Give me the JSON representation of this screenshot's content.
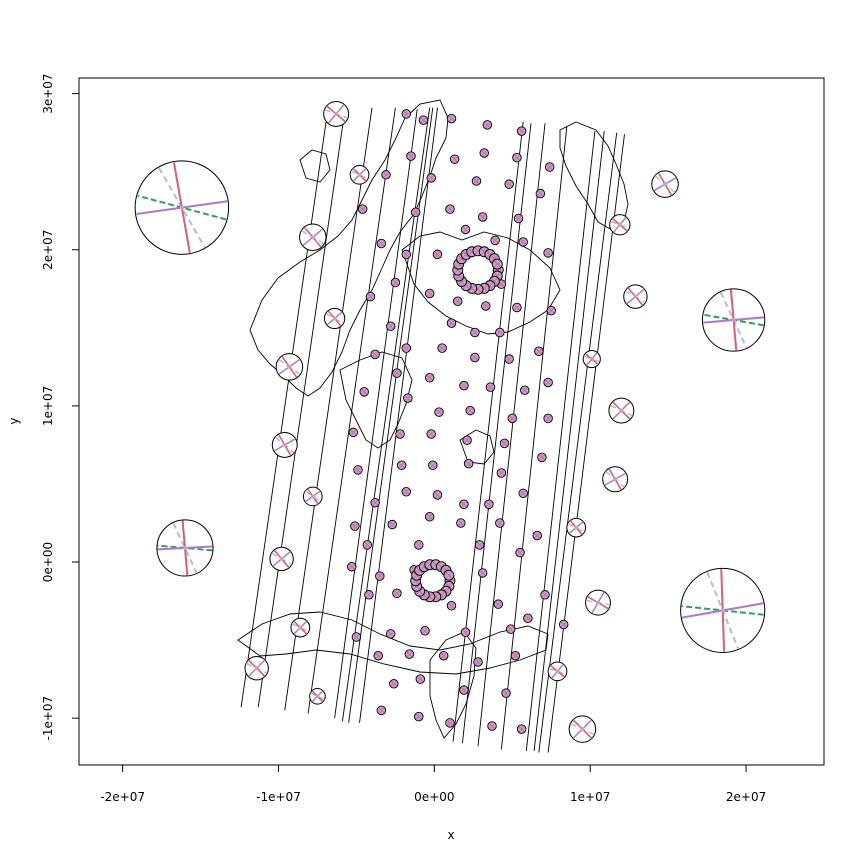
{
  "chart_data": {
    "type": "scatter",
    "xlabel": "x",
    "ylabel": "y",
    "xlim": [
      -22800000,
      25000000
    ],
    "ylim": [
      -13000000,
      31000000
    ],
    "x_ticks": [
      {
        "value": -20000000,
        "label": "-2e+07"
      },
      {
        "value": -10000000,
        "label": "-1e+07"
      },
      {
        "value": 0,
        "label": "0e+00"
      },
      {
        "value": 10000000,
        "label": "1e+07"
      },
      {
        "value": 20000000,
        "label": "2e+07"
      }
    ],
    "y_ticks": [
      {
        "value": -10000000,
        "label": "-1e+07"
      },
      {
        "value": 0,
        "label": "0e+00"
      },
      {
        "value": 10000000,
        "label": "1e+07"
      },
      {
        "value": 20000000,
        "label": "2e+07"
      },
      {
        "value": 30000000,
        "label": "3e+07"
      }
    ],
    "grid": false,
    "legend": "none",
    "colors": {
      "indicatrix_fill": "#c9a0c3",
      "line_red": "#d0637a",
      "line_purple": "#a77cc9",
      "line_green": "#3c9a60",
      "line_gray": "#bbbbbb",
      "outline": "#000000"
    },
    "graticule": [
      [
        [
          -12400000,
          -9300000
        ],
        [
          -6800000,
          29200000
        ]
      ],
      [
        [
          -11300000,
          -9300000
        ],
        [
          -5700000,
          29200000
        ]
      ],
      [
        [
          -9600000,
          -9500000
        ],
        [
          -4000000,
          29100000
        ]
      ],
      [
        [
          -8100000,
          -9700000
        ],
        [
          -2500000,
          29100000
        ]
      ],
      [
        [
          -6400000,
          -10000000
        ],
        [
          -1100000,
          29000000
        ]
      ],
      [
        [
          -5900000,
          -10200000
        ],
        [
          -300000,
          29100000
        ]
      ],
      [
        [
          -5500000,
          -10300000
        ],
        [
          -100000,
          29100000
        ]
      ],
      [
        [
          -4800000,
          -10300000
        ],
        [
          200000,
          29100000
        ]
      ],
      [
        [
          1200000,
          -11500000
        ],
        [
          5700000,
          28200000
        ]
      ],
      [
        [
          1800000,
          -11600000
        ],
        [
          6200000,
          28100000
        ]
      ],
      [
        [
          2800000,
          -11800000
        ],
        [
          7100000,
          28100000
        ]
      ],
      [
        [
          4300000,
          -12000000
        ],
        [
          8500000,
          27900000
        ]
      ],
      [
        [
          5900000,
          -12100000
        ],
        [
          10300000,
          27600000
        ]
      ],
      [
        [
          6400000,
          -12100000
        ],
        [
          10900000,
          27600000
        ]
      ],
      [
        [
          6700000,
          -12200000
        ],
        [
          11700000,
          27500000
        ]
      ],
      [
        [
          7300000,
          -12200000
        ],
        [
          12200000,
          27400000
        ]
      ]
    ],
    "indicatrices": [
      {
        "x": -16200000,
        "y": 22700000,
        "r": 3000000,
        "a": -80,
        "b": 8,
        "c": 165
      },
      {
        "x": -16000000,
        "y": 900000,
        "r": 1800000,
        "a": -85,
        "b": 3,
        "c": 175
      },
      {
        "x": 19200000,
        "y": 15500000,
        "r": 2000000,
        "a": -85,
        "b": 5,
        "c": 170
      },
      {
        "x": 18500000,
        "y": -3100000,
        "r": 2700000,
        "a": -88,
        "b": 10,
        "c": 174
      },
      {
        "x": 14800000,
        "y": 24200000,
        "r": 850000,
        "a": -60,
        "b": 30,
        "c": 120
      },
      {
        "x": 12900000,
        "y": 17000000,
        "r": 750000,
        "a": -50,
        "b": 40,
        "c": 130
      },
      {
        "x": 11900000,
        "y": 21600000,
        "r": 650000,
        "a": -40,
        "b": 50,
        "c": 140
      },
      {
        "x": 12000000,
        "y": 9700000,
        "r": 800000,
        "a": -45,
        "b": 45,
        "c": 135
      },
      {
        "x": 11600000,
        "y": 5300000,
        "r": 800000,
        "a": -60,
        "b": 30,
        "c": 120
      },
      {
        "x": 10500000,
        "y": -2600000,
        "r": 800000,
        "a": -30,
        "b": 60,
        "c": 150
      },
      {
        "x": 9500000,
        "y": -10700000,
        "r": 850000,
        "a": -45,
        "b": 45,
        "c": 135
      },
      {
        "x": 7900000,
        "y": -7000000,
        "r": 600000,
        "a": -40,
        "b": 50,
        "c": 140
      },
      {
        "x": -6300000,
        "y": 28700000,
        "r": 800000,
        "a": -40,
        "b": 50,
        "c": 140
      },
      {
        "x": -7800000,
        "y": 20800000,
        "r": 850000,
        "a": -50,
        "b": 40,
        "c": 130
      },
      {
        "x": -9300000,
        "y": 12500000,
        "r": 850000,
        "a": -55,
        "b": 35,
        "c": 125
      },
      {
        "x": -9600000,
        "y": 7500000,
        "r": 800000,
        "a": -60,
        "b": 30,
        "c": 120
      },
      {
        "x": -9800000,
        "y": 200000,
        "r": 750000,
        "a": -50,
        "b": 40,
        "c": 130
      },
      {
        "x": -11400000,
        "y": -6800000,
        "r": 750000,
        "a": -45,
        "b": 45,
        "c": 135
      },
      {
        "x": -4800000,
        "y": 24800000,
        "r": 600000,
        "a": -45,
        "b": 45,
        "c": 135
      },
      {
        "x": -6400000,
        "y": 15600000,
        "r": 650000,
        "a": -50,
        "b": 40,
        "c": 130
      },
      {
        "x": -7800000,
        "y": 4200000,
        "r": 600000,
        "a": -55,
        "b": 35,
        "c": 125
      },
      {
        "x": -8600000,
        "y": -4200000,
        "r": 600000,
        "a": -45,
        "b": 45,
        "c": 135
      },
      {
        "x": -7500000,
        "y": -8600000,
        "r": 500000,
        "a": -45,
        "b": 45,
        "c": 135
      },
      {
        "x": 10100000,
        "y": 13000000,
        "r": 550000,
        "a": -40,
        "b": 50,
        "c": 140
      },
      {
        "x": 9100000,
        "y": 2200000,
        "r": 600000,
        "a": -50,
        "b": 40,
        "c": 130
      }
    ],
    "small_points": [
      [
        -1800000,
        28700000
      ],
      [
        -700000,
        28300000
      ],
      [
        1100000,
        28400000
      ],
      [
        3400000,
        28000000
      ],
      [
        5600000,
        27600000
      ],
      [
        -1500000,
        26000000
      ],
      [
        1300000,
        25800000
      ],
      [
        3200000,
        26200000
      ],
      [
        5300000,
        25900000
      ],
      [
        7400000,
        25300000
      ],
      [
        -3100000,
        24800000
      ],
      [
        -200000,
        24600000
      ],
      [
        2700000,
        24400000
      ],
      [
        4800000,
        24200000
      ],
      [
        6800000,
        23600000
      ],
      [
        -4600000,
        22600000
      ],
      [
        -1200000,
        22400000
      ],
      [
        1000000,
        22600000
      ],
      [
        3100000,
        22100000
      ],
      [
        5400000,
        22000000
      ],
      [
        -3400000,
        20400000
      ],
      [
        -1800000,
        19700000
      ],
      [
        200000,
        19700000
      ],
      [
        2000000,
        21300000
      ],
      [
        3900000,
        20600000
      ],
      [
        5700000,
        20500000
      ],
      [
        7300000,
        19800000
      ],
      [
        -2500000,
        17900000
      ],
      [
        1800000,
        17900000
      ],
      [
        4300000,
        17800000
      ],
      [
        -4100000,
        17000000
      ],
      [
        -300000,
        17200000
      ],
      [
        1500000,
        16700000
      ],
      [
        3300000,
        16400000
      ],
      [
        5300000,
        16300000
      ],
      [
        7500000,
        16100000
      ],
      [
        -2800000,
        15100000
      ],
      [
        1100000,
        15300000
      ],
      [
        2600000,
        14700000
      ],
      [
        4200000,
        14700000
      ],
      [
        -3800000,
        13300000
      ],
      [
        -1800000,
        13700000
      ],
      [
        500000,
        13700000
      ],
      [
        2600000,
        13100000
      ],
      [
        4800000,
        13000000
      ],
      [
        6700000,
        13500000
      ],
      [
        -2400000,
        12100000
      ],
      [
        -300000,
        11800000
      ],
      [
        1900000,
        11300000
      ],
      [
        3600000,
        11200000
      ],
      [
        5800000,
        11000000
      ],
      [
        7300000,
        11500000
      ],
      [
        -4500000,
        10900000
      ],
      [
        -1700000,
        10500000
      ],
      [
        300000,
        9600000
      ],
      [
        2300000,
        9700000
      ],
      [
        5000000,
        9200000
      ],
      [
        7300000,
        9200000
      ],
      [
        -5200000,
        8300000
      ],
      [
        -2200000,
        8200000
      ],
      [
        -200000,
        8200000
      ],
      [
        2100000,
        7800000
      ],
      [
        4500000,
        7600000
      ],
      [
        6900000,
        6700000
      ],
      [
        -4900000,
        5900000
      ],
      [
        -2100000,
        6200000
      ],
      [
        -100000,
        6200000
      ],
      [
        2200000,
        6300000
      ],
      [
        4300000,
        5700000
      ],
      [
        -3800000,
        3800000
      ],
      [
        -1800000,
        4500000
      ],
      [
        200000,
        4300000
      ],
      [
        1900000,
        3700000
      ],
      [
        3500000,
        3700000
      ],
      [
        5700000,
        4400000
      ],
      [
        -2700000,
        2400000
      ],
      [
        -300000,
        2900000
      ],
      [
        1700000,
        2500000
      ],
      [
        4200000,
        2500000
      ],
      [
        6600000,
        1700000
      ],
      [
        -5100000,
        2300000
      ],
      [
        -4300000,
        1100000
      ],
      [
        -1000000,
        1100000
      ],
      [
        2900000,
        1100000
      ],
      [
        5500000,
        600000
      ],
      [
        -5300000,
        -300000
      ],
      [
        -3500000,
        -900000
      ],
      [
        -1300000,
        -500000
      ],
      [
        3100000,
        -700000
      ],
      [
        7100000,
        -2100000
      ],
      [
        -4200000,
        -2100000
      ],
      [
        -2400000,
        -2000000
      ],
      [
        1100000,
        -2800000
      ],
      [
        4100000,
        -2700000
      ],
      [
        6000000,
        -3600000
      ],
      [
        -5000000,
        -4800000
      ],
      [
        -2800000,
        -4600000
      ],
      [
        -600000,
        -4400000
      ],
      [
        2000000,
        -4500000
      ],
      [
        4900000,
        -4300000
      ],
      [
        -3600000,
        -6000000
      ],
      [
        -1600000,
        -5900000
      ],
      [
        600000,
        -6000000
      ],
      [
        2800000,
        -6400000
      ],
      [
        5200000,
        -6000000
      ],
      [
        -2600000,
        -7800000
      ],
      [
        -900000,
        -7500000
      ],
      [
        1900000,
        -8200000
      ],
      [
        4600000,
        -8400000
      ],
      [
        -3400000,
        -9500000
      ],
      [
        -1000000,
        -9900000
      ],
      [
        1000000,
        -10300000
      ],
      [
        3700000,
        -10500000
      ],
      [
        5600000,
        -10700000
      ],
      [
        8300000,
        -4000000
      ]
    ],
    "ring_centers": [
      {
        "x": 2800000,
        "y": 18700000,
        "r": 1300000,
        "n": 20
      },
      {
        "x": -100000,
        "y": -1200000,
        "r": 1100000,
        "n": 18
      }
    ]
  }
}
